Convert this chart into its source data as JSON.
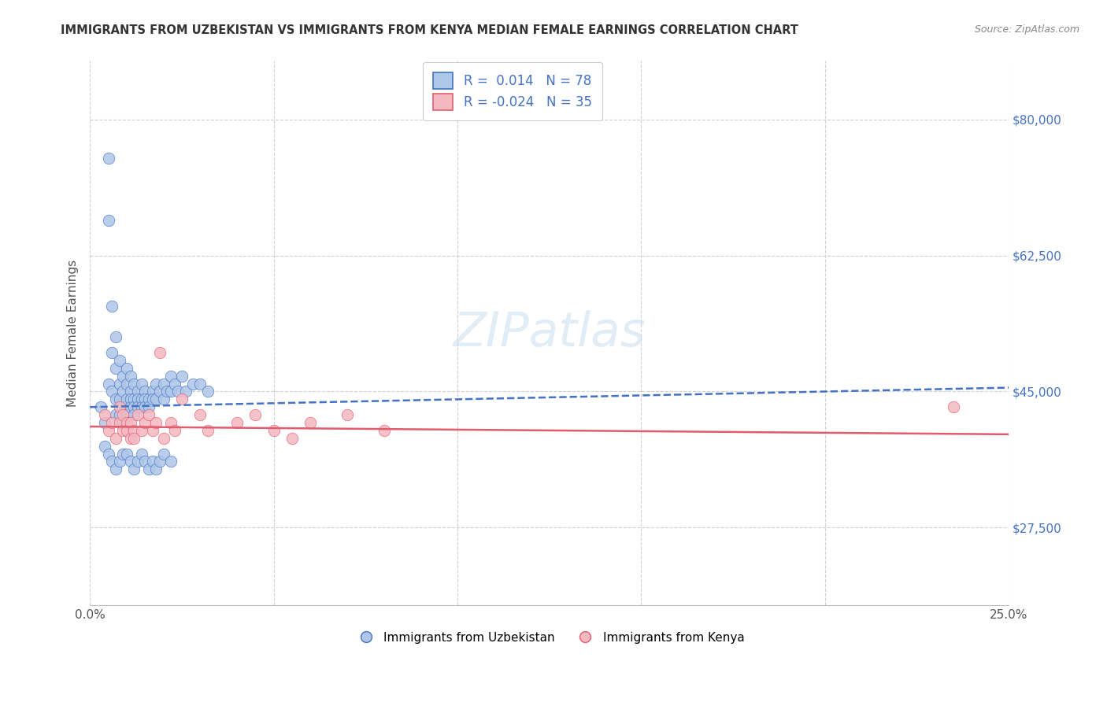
{
  "title": "IMMIGRANTS FROM UZBEKISTAN VS IMMIGRANTS FROM KENYA MEDIAN FEMALE EARNINGS CORRELATION CHART",
  "source": "Source: ZipAtlas.com",
  "ylabel": "Median Female Earnings",
  "xlim": [
    0.0,
    0.25
  ],
  "ylim": [
    17500,
    87500
  ],
  "yticks": [
    27500,
    45000,
    62500,
    80000
  ],
  "ytick_labels": [
    "$27,500",
    "$45,000",
    "$62,500",
    "$80,000"
  ],
  "xticks": [
    0.0,
    0.05,
    0.1,
    0.15,
    0.2,
    0.25
  ],
  "xtick_labels": [
    "0.0%",
    "",
    "",
    "",
    "",
    "25.0%"
  ],
  "uzbekistan_color": "#aec6e8",
  "kenya_color": "#f4b8c1",
  "uzbekistan_line_color": "#4472c4",
  "kenya_line_color": "#e05c6e",
  "R_uzbekistan": 0.014,
  "N_uzbekistan": 78,
  "R_kenya": -0.024,
  "N_kenya": 35,
  "legend_label_uzbekistan": "Immigrants from Uzbekistan",
  "legend_label_kenya": "Immigrants from Kenya",
  "watermark": "ZIPatlas",
  "background_color": "#ffffff",
  "uzbekistan_x": [
    0.003,
    0.004,
    0.005,
    0.005,
    0.005,
    0.006,
    0.006,
    0.006,
    0.007,
    0.007,
    0.007,
    0.007,
    0.008,
    0.008,
    0.008,
    0.008,
    0.009,
    0.009,
    0.009,
    0.009,
    0.01,
    0.01,
    0.01,
    0.01,
    0.011,
    0.011,
    0.011,
    0.011,
    0.012,
    0.012,
    0.012,
    0.012,
    0.013,
    0.013,
    0.013,
    0.014,
    0.014,
    0.014,
    0.015,
    0.015,
    0.015,
    0.016,
    0.016,
    0.017,
    0.017,
    0.018,
    0.018,
    0.019,
    0.02,
    0.02,
    0.021,
    0.022,
    0.022,
    0.023,
    0.024,
    0.025,
    0.026,
    0.028,
    0.03,
    0.032,
    0.004,
    0.005,
    0.006,
    0.007,
    0.008,
    0.009,
    0.01,
    0.011,
    0.012,
    0.013,
    0.014,
    0.015,
    0.016,
    0.017,
    0.018,
    0.019,
    0.02,
    0.022
  ],
  "uzbekistan_y": [
    43000,
    41000,
    75000,
    67000,
    46000,
    56000,
    50000,
    45000,
    52000,
    48000,
    44000,
    42000,
    49000,
    46000,
    44000,
    42000,
    47000,
    45000,
    43000,
    41000,
    48000,
    46000,
    44000,
    42000,
    47000,
    45000,
    44000,
    43000,
    46000,
    44000,
    43000,
    42000,
    45000,
    44000,
    43000,
    46000,
    44000,
    43000,
    45000,
    44000,
    43000,
    44000,
    43000,
    45000,
    44000,
    46000,
    44000,
    45000,
    46000,
    44000,
    45000,
    47000,
    45000,
    46000,
    45000,
    47000,
    45000,
    46000,
    46000,
    45000,
    38000,
    37000,
    36000,
    35000,
    36000,
    37000,
    37000,
    36000,
    35000,
    36000,
    37000,
    36000,
    35000,
    36000,
    35000,
    36000,
    37000,
    36000
  ],
  "kenya_x": [
    0.004,
    0.005,
    0.006,
    0.007,
    0.008,
    0.008,
    0.009,
    0.009,
    0.01,
    0.01,
    0.011,
    0.011,
    0.012,
    0.012,
    0.013,
    0.014,
    0.015,
    0.016,
    0.017,
    0.018,
    0.019,
    0.02,
    0.022,
    0.023,
    0.025,
    0.03,
    0.032,
    0.04,
    0.045,
    0.05,
    0.055,
    0.06,
    0.07,
    0.08,
    0.235
  ],
  "kenya_y": [
    42000,
    40000,
    41000,
    39000,
    43000,
    41000,
    40000,
    42000,
    41000,
    40000,
    39000,
    41000,
    40000,
    39000,
    42000,
    40000,
    41000,
    42000,
    40000,
    41000,
    50000,
    39000,
    41000,
    40000,
    44000,
    42000,
    40000,
    41000,
    42000,
    40000,
    39000,
    41000,
    42000,
    40000,
    43000
  ],
  "uzbekistan_trend_x": [
    0.0,
    0.25
  ],
  "uzbekistan_trend_y": [
    43000,
    45500
  ],
  "kenya_trend_x": [
    0.0,
    0.25
  ],
  "kenya_trend_y": [
    40500,
    39500
  ]
}
